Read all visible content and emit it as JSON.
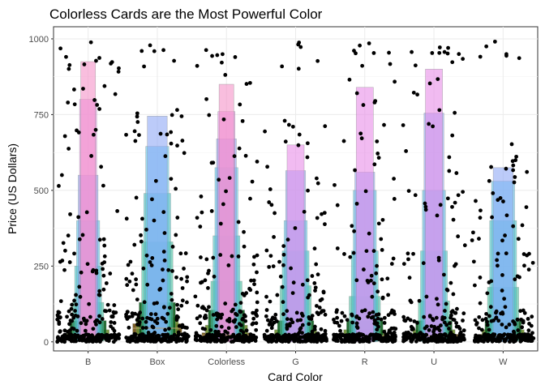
{
  "chart_data": {
    "type": "boxplot",
    "title": "Colorless Cards are the Most Powerful Color",
    "xlabel": "Card Color",
    "ylabel": "Price (US Dollars)",
    "categories": [
      "B",
      "Box",
      "Colorless",
      "G",
      "R",
      "U",
      "W"
    ],
    "ylim": [
      -30,
      1040
    ],
    "yticks": [
      0,
      250,
      500,
      750,
      1000
    ],
    "grid": true,
    "legend": "none",
    "letter_values": [
      {
        "category": "B",
        "boxes": [
          [
            15,
            25
          ],
          [
            10,
            40
          ],
          [
            5,
            70
          ],
          [
            2,
            130
          ],
          [
            1,
            250
          ],
          [
            0,
            400
          ],
          [
            0,
            550
          ],
          [
            0,
            800
          ],
          [
            0,
            925
          ]
        ]
      },
      {
        "category": "Box",
        "boxes": [
          [
            30,
            60
          ],
          [
            20,
            80
          ],
          [
            10,
            130
          ],
          [
            5,
            330
          ],
          [
            3,
            490
          ],
          [
            2,
            645
          ],
          [
            1,
            745
          ]
        ]
      },
      {
        "category": "Colorless",
        "boxes": [
          [
            15,
            30
          ],
          [
            10,
            55
          ],
          [
            5,
            105
          ],
          [
            2,
            200
          ],
          [
            1,
            350
          ],
          [
            0,
            575
          ],
          [
            0,
            670
          ],
          [
            0,
            760
          ],
          [
            0,
            850
          ]
        ]
      },
      {
        "category": "G",
        "boxes": [
          [
            15,
            25
          ],
          [
            10,
            40
          ],
          [
            5,
            70
          ],
          [
            2,
            185
          ],
          [
            1,
            300
          ],
          [
            0,
            400
          ],
          [
            0,
            565
          ],
          [
            0,
            650
          ]
        ]
      },
      {
        "category": "R",
        "boxes": [
          [
            15,
            25
          ],
          [
            10,
            40
          ],
          [
            5,
            70
          ],
          [
            2,
            150
          ],
          [
            1,
            300
          ],
          [
            0,
            500
          ],
          [
            0,
            560
          ],
          [
            0,
            840
          ]
        ]
      },
      {
        "category": "U",
        "boxes": [
          [
            15,
            25
          ],
          [
            10,
            40
          ],
          [
            5,
            70
          ],
          [
            2,
            135
          ],
          [
            1,
            300
          ],
          [
            0,
            500
          ],
          [
            0,
            755
          ],
          [
            0,
            900
          ]
        ]
      },
      {
        "category": "W",
        "boxes": [
          [
            15,
            25
          ],
          [
            10,
            40
          ],
          [
            5,
            70
          ],
          [
            2,
            180
          ],
          [
            1,
            400
          ],
          [
            0,
            530
          ],
          [
            0,
            575
          ]
        ]
      }
    ],
    "level_colors": [
      "#6b4c0c",
      "#6b8c2e",
      "#0b5c1c",
      "#3fbf9f",
      "#43c7c7",
      "#5fc9ef",
      "#8fa9f5",
      "#e78ee7",
      "#f592c8"
    ],
    "point_color": "#000000"
  }
}
